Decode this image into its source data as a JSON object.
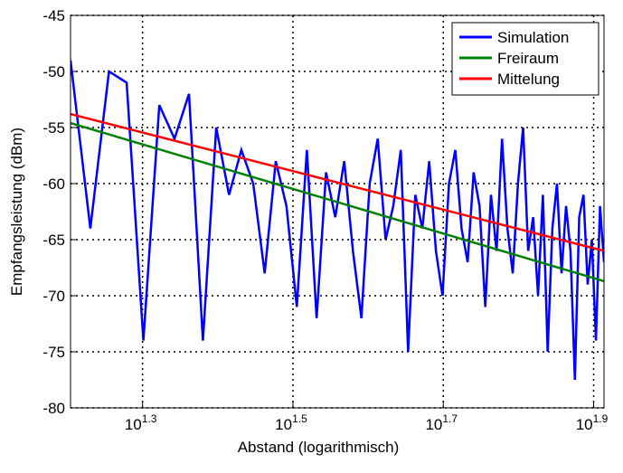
{
  "chart_data": {
    "type": "line",
    "xlabel": "Abstand  (logarithmisch)",
    "ylabel": "Empfangsleistung (dBm)",
    "xscale": "log",
    "xlim": [
      16,
      82
    ],
    "ylim": [
      -80,
      -45
    ],
    "xticks": [
      {
        "value": 19.95,
        "label": "10",
        "exponent": "1.3"
      },
      {
        "value": 31.62,
        "label": "10",
        "exponent": "1.5"
      },
      {
        "value": 50.12,
        "label": "10",
        "exponent": "1.7"
      },
      {
        "value": 79.43,
        "label": "10",
        "exponent": "1.9"
      }
    ],
    "yticks": [
      -80,
      -75,
      -70,
      -65,
      -60,
      -55,
      -50,
      -45
    ],
    "grid": true,
    "legend": "upper right",
    "series": [
      {
        "name": "Simulation",
        "color": "#0000ff",
        "x": [
          16,
          17,
          18,
          19,
          20,
          21,
          22,
          23,
          24,
          25,
          26,
          27,
          28,
          29,
          30,
          31,
          32,
          33,
          34,
          35,
          36,
          37,
          38,
          39,
          40,
          41,
          42,
          43,
          44,
          45,
          46,
          47,
          48,
          49,
          50,
          51,
          52,
          53,
          54,
          55,
          56,
          57,
          58,
          59,
          60,
          61,
          62,
          63,
          64,
          65,
          66,
          67,
          68,
          69,
          70,
          71,
          72,
          73,
          74,
          75,
          76,
          77,
          78,
          79,
          80,
          81,
          82
        ],
        "values": [
          -49,
          -64,
          -50,
          -51,
          -74,
          -53,
          -56,
          -52,
          -74,
          -55,
          -61,
          -57,
          -60,
          -68,
          -58,
          -62,
          -71,
          -57,
          -72,
          -59,
          -63,
          -58,
          -66,
          -72,
          -60,
          -56,
          -65,
          -62,
          -57,
          -75,
          -61,
          -64,
          -58,
          -66,
          -70,
          -60,
          -57,
          -64,
          -67,
          -59,
          -62,
          -71,
          -61,
          -66,
          -56,
          -64,
          -68,
          -60,
          -55,
          -66,
          -63,
          -70,
          -61,
          -75,
          -64,
          -60,
          -68,
          -62,
          -66,
          -77.5,
          -63,
          -61,
          -69,
          -65,
          -74,
          -62,
          -67
        ]
      },
      {
        "name": "Freiraum",
        "color": "#008000",
        "x": [
          16,
          82
        ],
        "values": [
          -54.6,
          -68.7
        ]
      },
      {
        "name": "Mittelung",
        "color": "#ff0000",
        "x": [
          16,
          82
        ],
        "values": [
          -53.8,
          -66.0
        ]
      }
    ]
  }
}
